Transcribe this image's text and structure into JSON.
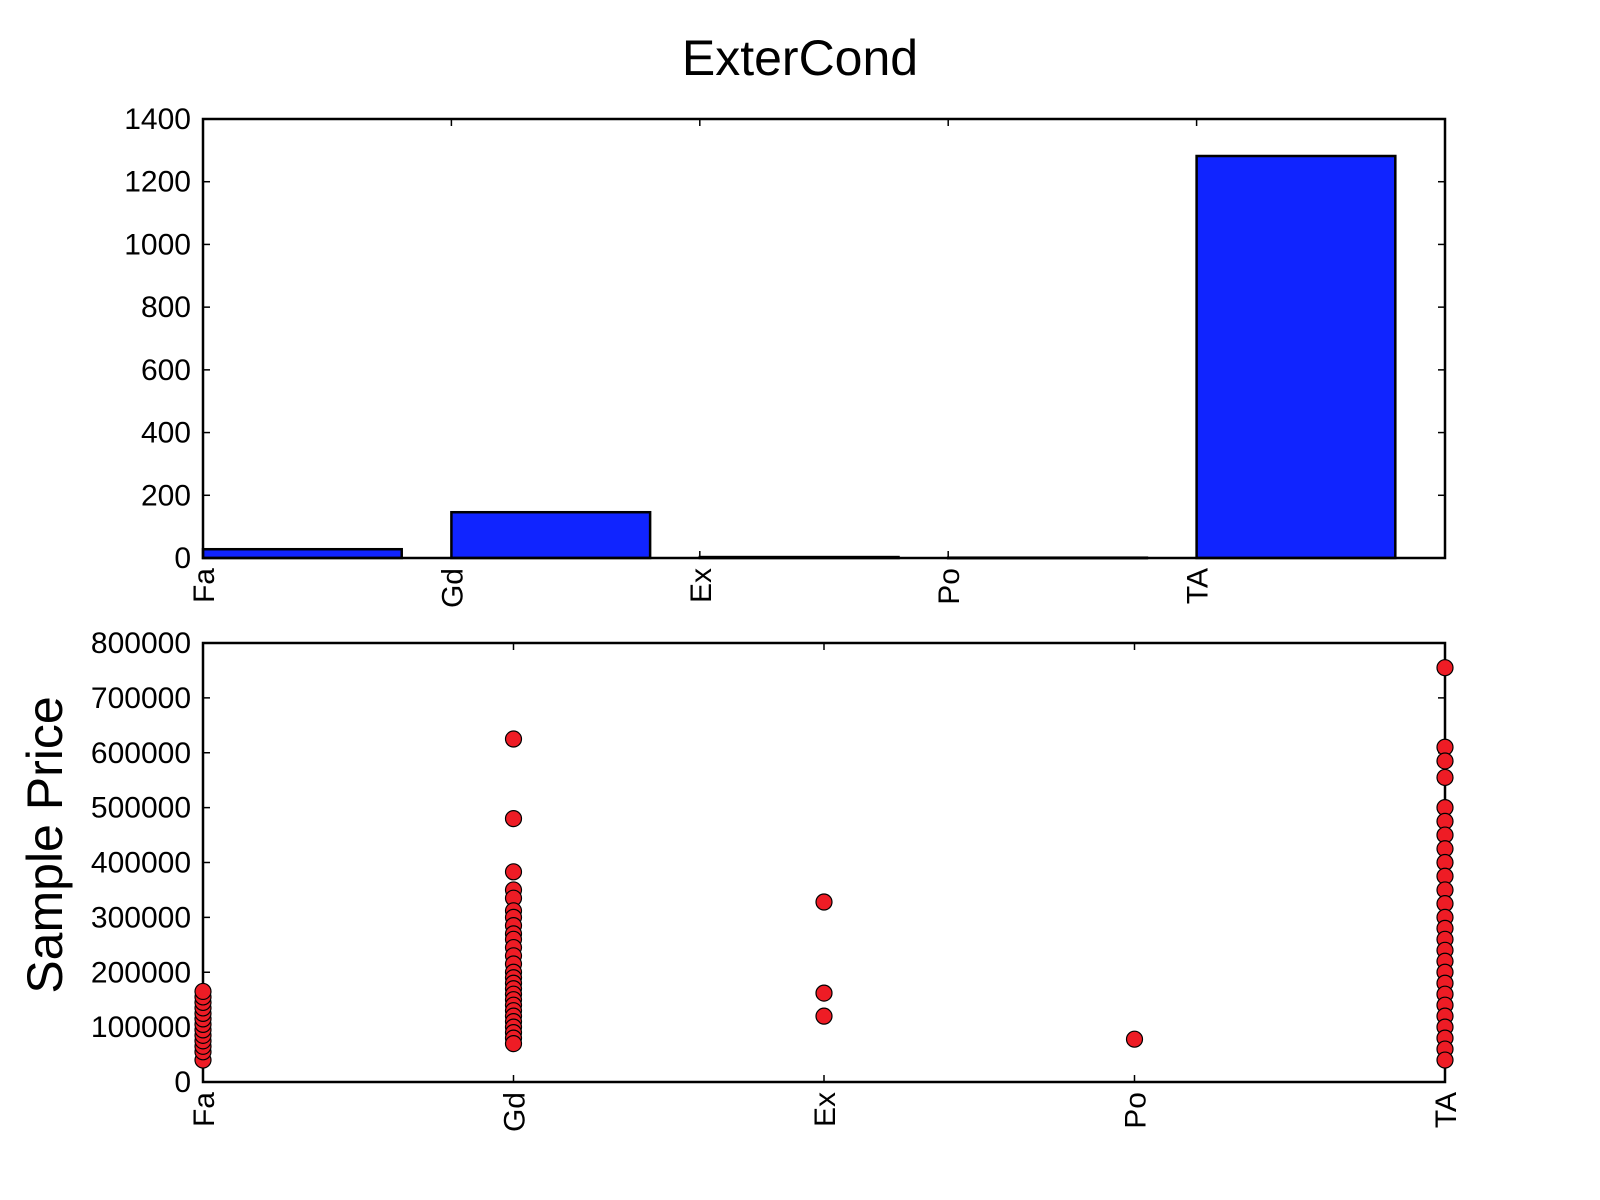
{
  "title": "ExterCond",
  "colors": {
    "bar_fill": "#1024ff",
    "point_fill": "#ee1c25",
    "axis": "#000000"
  },
  "chart_data": [
    {
      "type": "bar",
      "categories": [
        "Fa",
        "Gd",
        "Ex",
        "Po",
        "TA"
      ],
      "values": [
        28,
        146,
        3,
        1,
        1282
      ],
      "ylim": [
        0,
        1400
      ],
      "yticks": [
        "0",
        "200",
        "400",
        "600",
        "800",
        "1000",
        "1200",
        "1400"
      ],
      "ylabel": "",
      "xlabel": ""
    },
    {
      "type": "scatter",
      "categories": [
        "Fa",
        "Gd",
        "Ex",
        "Po",
        "TA"
      ],
      "ylabel": "Sample Price",
      "xlabel": "",
      "ylim": [
        0,
        800000
      ],
      "yticks": [
        "0",
        "100000",
        "200000",
        "300000",
        "400000",
        "500000",
        "600000",
        "700000",
        "800000"
      ],
      "points": [
        {
          "x": "Fa",
          "y": 40000
        },
        {
          "x": "Fa",
          "y": 55000
        },
        {
          "x": "Fa",
          "y": 65000
        },
        {
          "x": "Fa",
          "y": 75000
        },
        {
          "x": "Fa",
          "y": 85000
        },
        {
          "x": "Fa",
          "y": 95000
        },
        {
          "x": "Fa",
          "y": 105000
        },
        {
          "x": "Fa",
          "y": 115000
        },
        {
          "x": "Fa",
          "y": 125000
        },
        {
          "x": "Fa",
          "y": 135000
        },
        {
          "x": "Fa",
          "y": 145000
        },
        {
          "x": "Fa",
          "y": 155000
        },
        {
          "x": "Fa",
          "y": 165000
        },
        {
          "x": "Gd",
          "y": 625000
        },
        {
          "x": "Gd",
          "y": 480000
        },
        {
          "x": "Gd",
          "y": 383000
        },
        {
          "x": "Gd",
          "y": 350000
        },
        {
          "x": "Gd",
          "y": 335000
        },
        {
          "x": "Gd",
          "y": 312000
        },
        {
          "x": "Gd",
          "y": 300000
        },
        {
          "x": "Gd",
          "y": 285000
        },
        {
          "x": "Gd",
          "y": 270000
        },
        {
          "x": "Gd",
          "y": 260000
        },
        {
          "x": "Gd",
          "y": 245000
        },
        {
          "x": "Gd",
          "y": 230000
        },
        {
          "x": "Gd",
          "y": 215000
        },
        {
          "x": "Gd",
          "y": 200000
        },
        {
          "x": "Gd",
          "y": 190000
        },
        {
          "x": "Gd",
          "y": 180000
        },
        {
          "x": "Gd",
          "y": 170000
        },
        {
          "x": "Gd",
          "y": 160000
        },
        {
          "x": "Gd",
          "y": 150000
        },
        {
          "x": "Gd",
          "y": 140000
        },
        {
          "x": "Gd",
          "y": 130000
        },
        {
          "x": "Gd",
          "y": 120000
        },
        {
          "x": "Gd",
          "y": 110000
        },
        {
          "x": "Gd",
          "y": 100000
        },
        {
          "x": "Gd",
          "y": 90000
        },
        {
          "x": "Gd",
          "y": 80000
        },
        {
          "x": "Gd",
          "y": 70000
        },
        {
          "x": "Ex",
          "y": 328000
        },
        {
          "x": "Ex",
          "y": 162000
        },
        {
          "x": "Ex",
          "y": 120000
        },
        {
          "x": "Po",
          "y": 78000
        },
        {
          "x": "TA",
          "y": 755000
        },
        {
          "x": "TA",
          "y": 610000
        },
        {
          "x": "TA",
          "y": 585000
        },
        {
          "x": "TA",
          "y": 555000
        },
        {
          "x": "TA",
          "y": 500000
        },
        {
          "x": "TA",
          "y": 475000
        },
        {
          "x": "TA",
          "y": 450000
        },
        {
          "x": "TA",
          "y": 425000
        },
        {
          "x": "TA",
          "y": 400000
        },
        {
          "x": "TA",
          "y": 375000
        },
        {
          "x": "TA",
          "y": 350000
        },
        {
          "x": "TA",
          "y": 325000
        },
        {
          "x": "TA",
          "y": 300000
        },
        {
          "x": "TA",
          "y": 280000
        },
        {
          "x": "TA",
          "y": 260000
        },
        {
          "x": "TA",
          "y": 240000
        },
        {
          "x": "TA",
          "y": 220000
        },
        {
          "x": "TA",
          "y": 200000
        },
        {
          "x": "TA",
          "y": 180000
        },
        {
          "x": "TA",
          "y": 160000
        },
        {
          "x": "TA",
          "y": 140000
        },
        {
          "x": "TA",
          "y": 120000
        },
        {
          "x": "TA",
          "y": 100000
        },
        {
          "x": "TA",
          "y": 80000
        },
        {
          "x": "TA",
          "y": 60000
        },
        {
          "x": "TA",
          "y": 40000
        }
      ]
    }
  ]
}
